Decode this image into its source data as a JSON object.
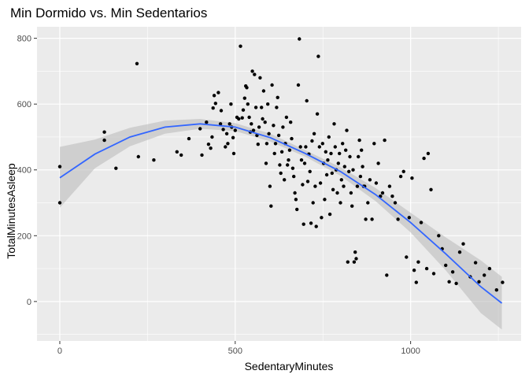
{
  "chart_data": {
    "type": "scatter",
    "title": "Min Dormido vs. Min Sedentarios",
    "xlabel": "SedentaryMinutes",
    "ylabel": "TotalMinutesAsleep",
    "xlim": [
      -65,
      1315
    ],
    "ylim": [
      -120,
      835
    ],
    "x_ticks": [
      0,
      500,
      1000
    ],
    "y_ticks": [
      0,
      200,
      400,
      600,
      800
    ],
    "x_tick_labels": [
      "0",
      "500",
      "1000"
    ],
    "y_tick_labels": [
      "0",
      "200",
      "400",
      "600",
      "800"
    ],
    "grid": true,
    "colors": {
      "panel": "#ebebeb",
      "grid_major": "#ffffff",
      "points": "#000000",
      "smooth_line": "#3366ff",
      "confidence_band": "#bdbdbd"
    },
    "smooth": {
      "x": [
        0,
        100,
        200,
        300,
        400,
        500,
        600,
        700,
        800,
        900,
        1000,
        1100,
        1200,
        1260
      ],
      "y": [
        376,
        448,
        500,
        530,
        540,
        530,
        498,
        450,
        395,
        325,
        240,
        145,
        45,
        -5
      ],
      "lower": [
        285,
        405,
        472,
        510,
        525,
        518,
        486,
        440,
        382,
        305,
        210,
        95,
        -35,
        -85
      ],
      "upper": [
        470,
        492,
        528,
        550,
        555,
        542,
        510,
        460,
        408,
        345,
        270,
        195,
        125,
        75
      ]
    },
    "points": [
      [
        0,
        300
      ],
      [
        0,
        410
      ],
      [
        127,
        490
      ],
      [
        127,
        515
      ],
      [
        160,
        405
      ],
      [
        220,
        723
      ],
      [
        224,
        440
      ],
      [
        268,
        430
      ],
      [
        334,
        455
      ],
      [
        346,
        445
      ],
      [
        368,
        495
      ],
      [
        400,
        525
      ],
      [
        405,
        445
      ],
      [
        418,
        545
      ],
      [
        424,
        478
      ],
      [
        430,
        466
      ],
      [
        434,
        500
      ],
      [
        437,
        588
      ],
      [
        440,
        626
      ],
      [
        444,
        602
      ],
      [
        452,
        635
      ],
      [
        458,
        540
      ],
      [
        460,
        580
      ],
      [
        466,
        523
      ],
      [
        472,
        470
      ],
      [
        476,
        510
      ],
      [
        479,
        480
      ],
      [
        484,
        540
      ],
      [
        488,
        600
      ],
      [
        490,
        530
      ],
      [
        494,
        498
      ],
      [
        496,
        450
      ],
      [
        500,
        520
      ],
      [
        505,
        560
      ],
      [
        510,
        555
      ],
      [
        515,
        776
      ],
      [
        520,
        558
      ],
      [
        523,
        582
      ],
      [
        527,
        618
      ],
      [
        530,
        655
      ],
      [
        533,
        650
      ],
      [
        536,
        600
      ],
      [
        540,
        560
      ],
      [
        543,
        515
      ],
      [
        546,
        540
      ],
      [
        549,
        700
      ],
      [
        552,
        520
      ],
      [
        555,
        690
      ],
      [
        559,
        590
      ],
      [
        562,
        505
      ],
      [
        565,
        478
      ],
      [
        568,
        530
      ],
      [
        571,
        680
      ],
      [
        575,
        590
      ],
      [
        578,
        555
      ],
      [
        581,
        640
      ],
      [
        585,
        545
      ],
      [
        588,
        420
      ],
      [
        590,
        480
      ],
      [
        593,
        600
      ],
      [
        596,
        510
      ],
      [
        599,
        350
      ],
      [
        602,
        290
      ],
      [
        605,
        658
      ],
      [
        609,
        535
      ],
      [
        612,
        450
      ],
      [
        615,
        480
      ],
      [
        618,
        590
      ],
      [
        621,
        620
      ],
      [
        624,
        505
      ],
      [
        627,
        415
      ],
      [
        630,
        390
      ],
      [
        633,
        455
      ],
      [
        636,
        530
      ],
      [
        640,
        370
      ],
      [
        643,
        480
      ],
      [
        646,
        560
      ],
      [
        649,
        415
      ],
      [
        652,
        430
      ],
      [
        655,
        460
      ],
      [
        658,
        545
      ],
      [
        661,
        495
      ],
      [
        664,
        405
      ],
      [
        667,
        380
      ],
      [
        670,
        330
      ],
      [
        673,
        310
      ],
      [
        676,
        280
      ],
      [
        680,
        658
      ],
      [
        683,
        798
      ],
      [
        686,
        470
      ],
      [
        689,
        430
      ],
      [
        692,
        355
      ],
      [
        695,
        235
      ],
      [
        698,
        420
      ],
      [
        701,
        470
      ],
      [
        704,
        610
      ],
      [
        707,
        365
      ],
      [
        710,
        448
      ],
      [
        713,
        395
      ],
      [
        716,
        238
      ],
      [
        719,
        488
      ],
      [
        722,
        300
      ],
      [
        725,
        510
      ],
      [
        728,
        350
      ],
      [
        731,
        228
      ],
      [
        734,
        570
      ],
      [
        737,
        745
      ],
      [
        740,
        470
      ],
      [
        743,
        360
      ],
      [
        746,
        255
      ],
      [
        749,
        480
      ],
      [
        752,
        420
      ],
      [
        755,
        310
      ],
      [
        758,
        455
      ],
      [
        761,
        385
      ],
      [
        764,
        430
      ],
      [
        767,
        500
      ],
      [
        770,
        265
      ],
      [
        773,
        450
      ],
      [
        776,
        390
      ],
      [
        779,
        340
      ],
      [
        782,
        540
      ],
      [
        785,
        470
      ],
      [
        788,
        400
      ],
      [
        791,
        330
      ],
      [
        794,
        420
      ],
      [
        797,
        450
      ],
      [
        800,
        300
      ],
      [
        803,
        370
      ],
      [
        806,
        480
      ],
      [
        809,
        350
      ],
      [
        812,
        410
      ],
      [
        815,
        460
      ],
      [
        818,
        520
      ],
      [
        821,
        120
      ],
      [
        824,
        395
      ],
      [
        827,
        440
      ],
      [
        830,
        330
      ],
      [
        833,
        290
      ],
      [
        836,
        400
      ],
      [
        839,
        120
      ],
      [
        842,
        150
      ],
      [
        845,
        130
      ],
      [
        848,
        350
      ],
      [
        851,
        440
      ],
      [
        854,
        490
      ],
      [
        857,
        380
      ],
      [
        860,
        460
      ],
      [
        863,
        410
      ],
      [
        866,
        350
      ],
      [
        869,
        350
      ],
      [
        872,
        250
      ],
      [
        878,
        300
      ],
      [
        884,
        370
      ],
      [
        890,
        250
      ],
      [
        896,
        480
      ],
      [
        902,
        360
      ],
      [
        908,
        420
      ],
      [
        914,
        320
      ],
      [
        920,
        330
      ],
      [
        926,
        490
      ],
      [
        932,
        80
      ],
      [
        940,
        350
      ],
      [
        948,
        320
      ],
      [
        956,
        300
      ],
      [
        964,
        250
      ],
      [
        972,
        380
      ],
      [
        980,
        395
      ],
      [
        988,
        135
      ],
      [
        996,
        255
      ],
      [
        1004,
        375
      ],
      [
        1010,
        95
      ],
      [
        1016,
        58
      ],
      [
        1022,
        120
      ],
      [
        1030,
        240
      ],
      [
        1038,
        435
      ],
      [
        1046,
        100
      ],
      [
        1050,
        450
      ],
      [
        1058,
        340
      ],
      [
        1066,
        85
      ],
      [
        1080,
        200
      ],
      [
        1090,
        160
      ],
      [
        1100,
        110
      ],
      [
        1110,
        60
      ],
      [
        1120,
        90
      ],
      [
        1130,
        55
      ],
      [
        1140,
        150
      ],
      [
        1150,
        175
      ],
      [
        1170,
        75
      ],
      [
        1185,
        118
      ],
      [
        1195,
        60
      ],
      [
        1210,
        80
      ],
      [
        1225,
        100
      ],
      [
        1245,
        35
      ],
      [
        1262,
        58
      ]
    ]
  }
}
